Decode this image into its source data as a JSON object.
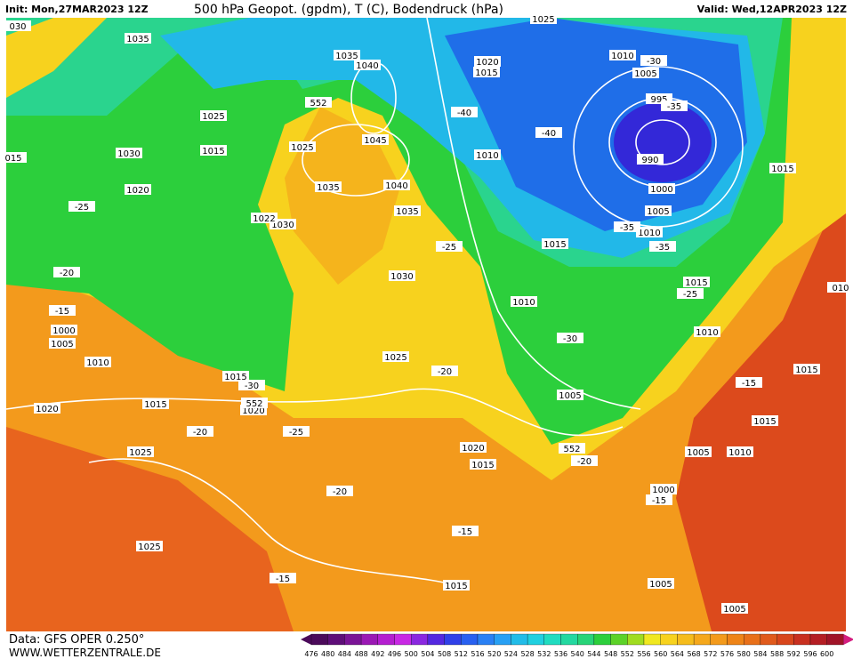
{
  "header": {
    "init": "Init: Mon,27MAR2023 12Z",
    "title": "500 hPa Geopot. (gpdm), T (C), Bodendruck (hPa)",
    "valid": "Valid: Wed,12APR2023 12Z"
  },
  "footer": {
    "source": "Data: GFS OPER 0.250°",
    "site": "WWW.WETTERZENTRALE.DE"
  },
  "legend": {
    "ticks": [
      476,
      480,
      484,
      488,
      492,
      496,
      500,
      504,
      508,
      512,
      516,
      520,
      524,
      528,
      532,
      536,
      540,
      544,
      548,
      552,
      556,
      560,
      564,
      568,
      572,
      576,
      580,
      584,
      588,
      592,
      596,
      600
    ]
  },
  "map_labels": [
    "1035",
    "1030",
    "1025",
    "1015",
    "1020",
    "-25",
    "-20",
    "-15",
    "1000",
    "1005",
    "1010",
    "1020",
    "1015",
    "1025",
    "1025",
    "-20",
    "1015",
    "-30",
    "1020",
    "-25",
    "-20",
    "1030",
    "1025",
    "-25",
    "-20",
    "1020",
    "1015",
    "-15",
    "-15",
    "1015",
    "1035",
    "1040",
    "1045",
    "1035",
    "1025",
    "1030",
    "1022",
    "1040",
    "1035",
    "1020",
    "1015",
    "-40",
    "1010",
    "1025",
    "-40",
    "1015",
    "1010",
    "-30",
    "1005",
    "552",
    "-20",
    "1000",
    "-15",
    "1005",
    "1005",
    "1005",
    "1010",
    "1015",
    "1015",
    "-15",
    "1010",
    "-25",
    "1015",
    "-35",
    "1010",
    "-35",
    "1005",
    "1000",
    "990",
    "995",
    "-35",
    "1005",
    "-30",
    "1010",
    "1015",
    "030",
    "015",
    "010",
    "552",
    "552"
  ]
}
